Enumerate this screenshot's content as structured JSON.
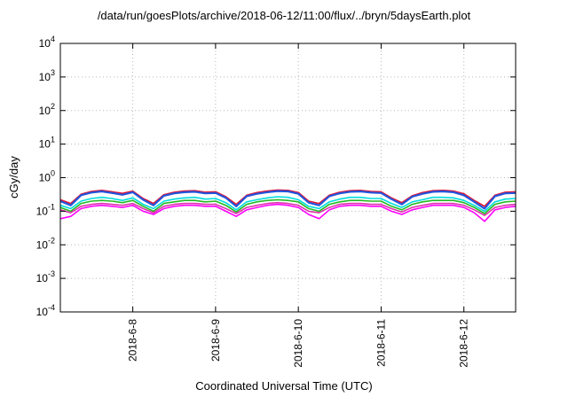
{
  "chart_data": {
    "type": "line",
    "title": "/data/run/goesPlots/archive/2018-06-12/11:00/flux/../bryn/5daysEarth.plot",
    "xlabel": "Coordinated Universal Time (UTC)",
    "ylabel": "cGy/day",
    "y_scale": "log",
    "ylim": [
      0.0001,
      10000
    ],
    "xlim": [
      "2018-06-07T03:00",
      "2018-06-12T15:00"
    ],
    "x_ticks": [
      "2018-6-8",
      "2018-6-9",
      "2018-6-10",
      "2018-6-11",
      "2018-6-12"
    ],
    "y_ticks": [
      {
        "base": "10",
        "exp": "4"
      },
      {
        "base": "10",
        "exp": "3"
      },
      {
        "base": "10",
        "exp": "2"
      },
      {
        "base": "10",
        "exp": "1"
      },
      {
        "base": "10",
        "exp": "0"
      },
      {
        "base": "10",
        "exp": "-1"
      },
      {
        "base": "10",
        "exp": "-2"
      },
      {
        "base": "10",
        "exp": "-3"
      },
      {
        "base": "10",
        "exp": "-4"
      }
    ],
    "grid": true,
    "legend": "none",
    "x": [
      "2018-06-07T03:00",
      "2018-06-07T06:00",
      "2018-06-07T09:00",
      "2018-06-07T12:00",
      "2018-06-07T15:00",
      "2018-06-07T18:00",
      "2018-06-07T21:00",
      "2018-06-08T00:00",
      "2018-06-08T03:00",
      "2018-06-08T06:00",
      "2018-06-08T09:00",
      "2018-06-08T12:00",
      "2018-06-08T15:00",
      "2018-06-08T18:00",
      "2018-06-08T21:00",
      "2018-06-09T00:00",
      "2018-06-09T03:00",
      "2018-06-09T06:00",
      "2018-06-09T09:00",
      "2018-06-09T12:00",
      "2018-06-09T15:00",
      "2018-06-09T18:00",
      "2018-06-09T21:00",
      "2018-06-10T00:00",
      "2018-06-10T03:00",
      "2018-06-10T06:00",
      "2018-06-10T09:00",
      "2018-06-10T12:00",
      "2018-06-10T15:00",
      "2018-06-10T18:00",
      "2018-06-10T21:00",
      "2018-06-11T00:00",
      "2018-06-11T03:00",
      "2018-06-11T06:00",
      "2018-06-11T09:00",
      "2018-06-11T12:00",
      "2018-06-11T15:00",
      "2018-06-11T18:00",
      "2018-06-11T21:00",
      "2018-06-12T00:00",
      "2018-06-12T03:00",
      "2018-06-12T06:00",
      "2018-06-12T09:00",
      "2018-06-12T12:00",
      "2018-06-12T15:00"
    ],
    "series": [
      {
        "color": "#e8112d",
        "values": [
          0.22,
          0.17,
          0.32,
          0.39,
          0.42,
          0.38,
          0.34,
          0.4,
          0.24,
          0.17,
          0.31,
          0.37,
          0.4,
          0.41,
          0.37,
          0.38,
          0.27,
          0.16,
          0.3,
          0.36,
          0.4,
          0.43,
          0.42,
          0.36,
          0.2,
          0.17,
          0.3,
          0.37,
          0.41,
          0.42,
          0.39,
          0.38,
          0.25,
          0.18,
          0.29,
          0.36,
          0.41,
          0.42,
          0.4,
          0.33,
          0.21,
          0.14,
          0.3,
          0.37,
          0.38
        ]
      },
      {
        "color": "#2255dd",
        "values": [
          0.2,
          0.15,
          0.3,
          0.36,
          0.39,
          0.35,
          0.31,
          0.37,
          0.22,
          0.15,
          0.29,
          0.34,
          0.37,
          0.38,
          0.34,
          0.35,
          0.25,
          0.14,
          0.28,
          0.33,
          0.37,
          0.4,
          0.39,
          0.33,
          0.18,
          0.15,
          0.28,
          0.34,
          0.38,
          0.39,
          0.36,
          0.35,
          0.23,
          0.16,
          0.27,
          0.33,
          0.38,
          0.39,
          0.37,
          0.3,
          0.19,
          0.12,
          0.28,
          0.34,
          0.35
        ]
      },
      {
        "color": "#00dddd",
        "values": [
          0.15,
          0.12,
          0.2,
          0.24,
          0.26,
          0.24,
          0.21,
          0.25,
          0.16,
          0.12,
          0.2,
          0.23,
          0.25,
          0.26,
          0.23,
          0.24,
          0.18,
          0.11,
          0.19,
          0.22,
          0.25,
          0.27,
          0.26,
          0.22,
          0.14,
          0.12,
          0.19,
          0.23,
          0.26,
          0.26,
          0.24,
          0.24,
          0.17,
          0.13,
          0.19,
          0.22,
          0.26,
          0.26,
          0.25,
          0.21,
          0.15,
          0.1,
          0.19,
          0.23,
          0.24
        ]
      },
      {
        "color": "#22bb22",
        "values": [
          0.13,
          0.1,
          0.17,
          0.2,
          0.21,
          0.2,
          0.18,
          0.21,
          0.14,
          0.1,
          0.17,
          0.19,
          0.21,
          0.21,
          0.19,
          0.2,
          0.15,
          0.095,
          0.16,
          0.19,
          0.21,
          0.22,
          0.21,
          0.19,
          0.12,
          0.1,
          0.16,
          0.19,
          0.21,
          0.21,
          0.2,
          0.2,
          0.14,
          0.11,
          0.16,
          0.19,
          0.21,
          0.21,
          0.21,
          0.18,
          0.13,
          0.085,
          0.16,
          0.19,
          0.2
        ]
      },
      {
        "color": "#dd33aa",
        "values": [
          0.11,
          0.09,
          0.14,
          0.16,
          0.17,
          0.16,
          0.15,
          0.17,
          0.12,
          0.09,
          0.14,
          0.16,
          0.17,
          0.17,
          0.16,
          0.16,
          0.12,
          0.085,
          0.13,
          0.15,
          0.17,
          0.18,
          0.17,
          0.15,
          0.1,
          0.09,
          0.13,
          0.16,
          0.17,
          0.17,
          0.16,
          0.16,
          0.12,
          0.095,
          0.13,
          0.15,
          0.17,
          0.17,
          0.17,
          0.15,
          0.11,
          0.075,
          0.13,
          0.15,
          0.16
        ]
      },
      {
        "color": "#ff00ff",
        "values": [
          0.06,
          0.07,
          0.12,
          0.14,
          0.15,
          0.14,
          0.13,
          0.15,
          0.1,
          0.08,
          0.12,
          0.14,
          0.15,
          0.15,
          0.14,
          0.14,
          0.1,
          0.07,
          0.11,
          0.13,
          0.15,
          0.16,
          0.15,
          0.13,
          0.08,
          0.06,
          0.11,
          0.14,
          0.15,
          0.15,
          0.14,
          0.14,
          0.1,
          0.08,
          0.11,
          0.13,
          0.15,
          0.15,
          0.15,
          0.13,
          0.09,
          0.05,
          0.11,
          0.13,
          0.14
        ]
      }
    ]
  }
}
